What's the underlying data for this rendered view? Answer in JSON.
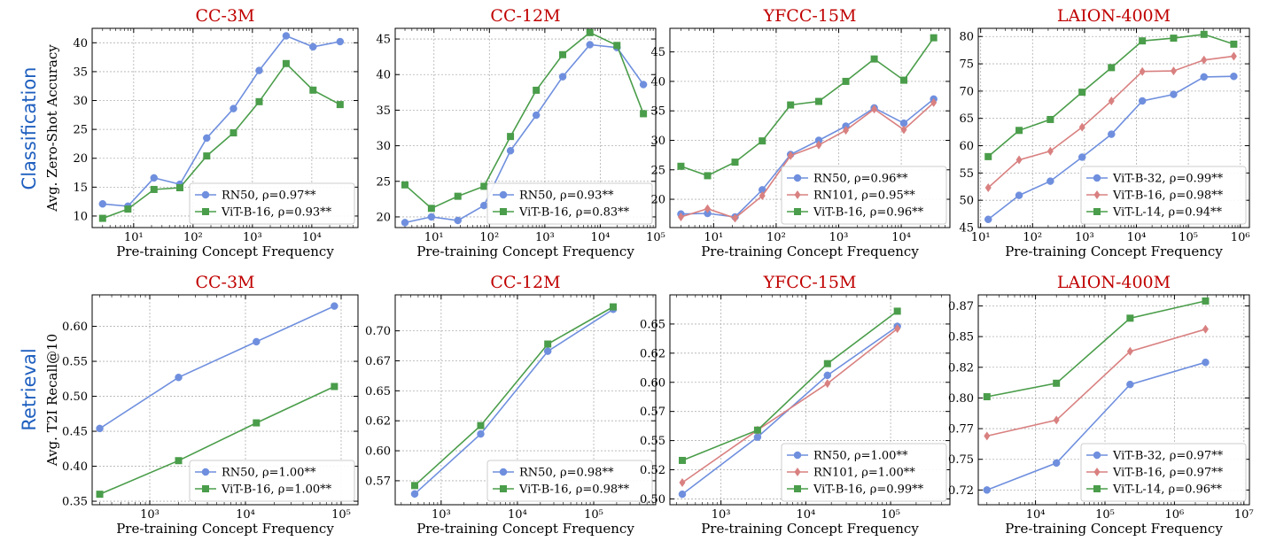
{
  "row_labels": [
    "Classification",
    "Retrieval"
  ],
  "colors": {
    "title": "#c00000",
    "row_label": "#1f5fbf",
    "rn50": "#6f8fde",
    "vitb16_green": "#4a9d4a",
    "rn101": "#d98080",
    "vitb32": "#6f8fde",
    "vitb16_red": "#d98080",
    "vitl14": "#4a9d4a"
  },
  "chart_data": [
    {
      "type": "line",
      "title": "CC-3M",
      "xlabel": "Pre-training Concept Frequency",
      "ylabel": "Avg. Zero-Shot Accuracy",
      "xscale": "log",
      "xlim": [
        2,
        60000
      ],
      "ylim": [
        8,
        42.5
      ],
      "xticks": [
        {
          "v": 10,
          "l": "10¹"
        },
        {
          "v": 100,
          "l": "10²"
        },
        {
          "v": 1000,
          "l": "10³"
        },
        {
          "v": 10000,
          "l": "10⁴"
        }
      ],
      "yticks": [
        {
          "v": 10,
          "l": "10"
        },
        {
          "v": 15,
          "l": "15"
        },
        {
          "v": 20,
          "l": "20"
        },
        {
          "v": 25,
          "l": "25"
        },
        {
          "v": 30,
          "l": "30"
        },
        {
          "v": 35,
          "l": "35"
        },
        {
          "v": 40,
          "l": "40"
        }
      ],
      "legend": "lower-right",
      "series": [
        {
          "name": "RN50, ρ=0.97**",
          "color_key": "rn50",
          "marker": "circle",
          "x": [
            3,
            8,
            22,
            60,
            170,
            480,
            1300,
            3700,
            10500,
            30000
          ],
          "y": [
            12.1,
            11.7,
            16.6,
            15.5,
            23.5,
            28.6,
            35.2,
            41.2,
            39.3,
            40.2
          ]
        },
        {
          "name": "ViT-B-16, ρ=0.93**",
          "color_key": "vitb16_green",
          "marker": "square",
          "x": [
            3,
            8,
            22,
            60,
            170,
            480,
            1300,
            3700,
            10500,
            30000
          ],
          "y": [
            9.6,
            11.2,
            14.6,
            14.9,
            20.4,
            24.4,
            29.8,
            36.4,
            31.8,
            29.3
          ]
        }
      ]
    },
    {
      "type": "line",
      "title": "CC-12M",
      "xlabel": "Pre-training Concept Frequency",
      "ylabel": "",
      "xscale": "log",
      "xlim": [
        2,
        100000
      ],
      "ylim": [
        18.5,
        46.5
      ],
      "xticks": [
        {
          "v": 10,
          "l": "10¹"
        },
        {
          "v": 100,
          "l": "10²"
        },
        {
          "v": 1000,
          "l": "10³"
        },
        {
          "v": 10000,
          "l": "10⁴"
        },
        {
          "v": 100000,
          "l": "10⁵"
        }
      ],
      "yticks": [
        {
          "v": 20,
          "l": "20"
        },
        {
          "v": 25,
          "l": "25"
        },
        {
          "v": 30,
          "l": "30"
        },
        {
          "v": 35,
          "l": "35"
        },
        {
          "v": 40,
          "l": "40"
        },
        {
          "v": 45,
          "l": "45"
        }
      ],
      "legend": "lower-right",
      "series": [
        {
          "name": "RN50, ρ=0.93**",
          "color_key": "rn50",
          "marker": "circle",
          "x": [
            3,
            9,
            27,
            80,
            240,
            700,
            2100,
            6500,
            20000,
            60000
          ],
          "y": [
            19.2,
            20.0,
            19.5,
            21.6,
            29.3,
            34.3,
            39.7,
            44.2,
            43.8,
            38.6
          ]
        },
        {
          "name": "ViT-B-16, ρ=0.83**",
          "color_key": "vitb16_green",
          "marker": "square",
          "x": [
            3,
            9,
            27,
            80,
            240,
            700,
            2100,
            6500,
            20000,
            60000
          ],
          "y": [
            24.5,
            21.2,
            22.9,
            24.3,
            31.3,
            37.8,
            42.8,
            45.9,
            44.1,
            34.5
          ]
        }
      ]
    },
    {
      "type": "line",
      "title": "YFCC-15M",
      "xlabel": "Pre-training Concept Frequency",
      "ylabel": "",
      "xscale": "log",
      "xlim": [
        2,
        60000
      ],
      "ylim": [
        15.2,
        49
      ],
      "xticks": [
        {
          "v": 10,
          "l": "10¹"
        },
        {
          "v": 100,
          "l": "10²"
        },
        {
          "v": 1000,
          "l": "10³"
        },
        {
          "v": 10000,
          "l": "10⁴"
        }
      ],
      "yticks": [
        {
          "v": 20,
          "l": "20"
        },
        {
          "v": 25,
          "l": "25"
        },
        {
          "v": 30,
          "l": "30"
        },
        {
          "v": 35,
          "l": "35"
        },
        {
          "v": 40,
          "l": "40"
        },
        {
          "v": 45,
          "l": "45"
        }
      ],
      "legend": "lower-right",
      "series": [
        {
          "name": "RN50, ρ=0.96**",
          "color_key": "rn50",
          "marker": "circle",
          "x": [
            3,
            8,
            22,
            60,
            170,
            480,
            1300,
            3700,
            11000,
            33000
          ],
          "y": [
            17.5,
            17.6,
            17.0,
            21.6,
            27.6,
            30.0,
            32.4,
            35.5,
            32.9,
            37.0
          ]
        },
        {
          "name": "RN101, ρ=0.95**",
          "color_key": "rn101",
          "marker": "diamond",
          "x": [
            3,
            8,
            22,
            60,
            170,
            480,
            1300,
            3700,
            11000,
            33000
          ],
          "y": [
            17.0,
            18.4,
            16.8,
            20.6,
            27.4,
            29.2,
            31.7,
            35.3,
            31.8,
            36.4
          ]
        },
        {
          "name": "ViT-B-16, ρ=0.96**",
          "color_key": "vitb16_green",
          "marker": "square",
          "x": [
            3,
            8,
            22,
            60,
            170,
            480,
            1300,
            3700,
            11000,
            33000
          ],
          "y": [
            25.6,
            24.0,
            26.3,
            29.9,
            36.0,
            36.6,
            40.0,
            43.8,
            40.2,
            47.4
          ]
        }
      ]
    },
    {
      "type": "line",
      "title": "LAION-400M",
      "xlabel": "Pre-training Concept Frequency",
      "ylabel": "",
      "xscale": "log",
      "xlim": [
        9,
        1500000
      ],
      "ylim": [
        45,
        81.5
      ],
      "xticks": [
        {
          "v": 10,
          "l": "10¹"
        },
        {
          "v": 100,
          "l": "10²"
        },
        {
          "v": 1000,
          "l": "10³"
        },
        {
          "v": 10000,
          "l": "10⁴"
        },
        {
          "v": 100000,
          "l": "10⁵"
        },
        {
          "v": 1000000,
          "l": "10⁶"
        }
      ],
      "yticks": [
        {
          "v": 45,
          "l": "45"
        },
        {
          "v": 50,
          "l": "50"
        },
        {
          "v": 55,
          "l": "55"
        },
        {
          "v": 60,
          "l": "60"
        },
        {
          "v": 65,
          "l": "65"
        },
        {
          "v": 70,
          "l": "70"
        },
        {
          "v": 75,
          "l": "75"
        },
        {
          "v": 80,
          "l": "80"
        }
      ],
      "legend": "lower-right",
      "series": [
        {
          "name": "ViT-B-32, ρ=0.99**",
          "color_key": "vitb32",
          "marker": "circle",
          "x": [
            14,
            55,
            220,
            900,
            3300,
            13000,
            52000,
            200000,
            750000
          ],
          "y": [
            46.5,
            50.9,
            53.5,
            57.9,
            62.1,
            68.2,
            69.4,
            72.6,
            72.7
          ]
        },
        {
          "name": "ViT-B-16, ρ=0.98**",
          "color_key": "vitb16_red",
          "marker": "diamond",
          "x": [
            14,
            55,
            220,
            900,
            3300,
            13000,
            52000,
            200000,
            750000
          ],
          "y": [
            52.3,
            57.4,
            59.0,
            63.4,
            68.2,
            73.6,
            73.7,
            75.7,
            76.4
          ]
        },
        {
          "name": "ViT-L-14, ρ=0.94**",
          "color_key": "vitl14",
          "marker": "square",
          "x": [
            14,
            55,
            220,
            900,
            3300,
            13000,
            52000,
            200000,
            750000
          ],
          "y": [
            58.0,
            62.8,
            64.8,
            69.8,
            74.3,
            79.2,
            79.7,
            80.4,
            78.6
          ]
        }
      ]
    },
    {
      "type": "line",
      "title": "CC-3M",
      "xlabel": "Pre-training Concept Frequency",
      "ylabel": "Avg. T2I Recall@10",
      "xscale": "log",
      "xlim": [
        250,
        150000
      ],
      "ylim": [
        0.345,
        0.645
      ],
      "xticks": [
        {
          "v": 1000,
          "l": "10³"
        },
        {
          "v": 10000,
          "l": "10⁴"
        },
        {
          "v": 100000,
          "l": "10⁵"
        }
      ],
      "yticks": [
        {
          "v": 0.35,
          "l": "0.35"
        },
        {
          "v": 0.4,
          "l": "0.40"
        },
        {
          "v": 0.45,
          "l": "0.45"
        },
        {
          "v": 0.5,
          "l": "0.50"
        },
        {
          "v": 0.55,
          "l": "0.55"
        },
        {
          "v": 0.6,
          "l": "0.60"
        }
      ],
      "legend": "lower-right",
      "series": [
        {
          "name": "RN50, ρ=1.00**",
          "color_key": "rn50",
          "marker": "circle",
          "x": [
            300,
            2000,
            13000,
            85000
          ],
          "y": [
            0.454,
            0.527,
            0.578,
            0.629
          ]
        },
        {
          "name": "ViT-B-16, ρ=1.00**",
          "color_key": "vitb16_green",
          "marker": "square",
          "x": [
            300,
            2000,
            13000,
            85000
          ],
          "y": [
            0.36,
            0.408,
            0.462,
            0.514
          ]
        }
      ]
    },
    {
      "type": "line",
      "title": "CC-12M",
      "xlabel": "Pre-training Concept Frequency",
      "ylabel": "",
      "xscale": "log",
      "xlim": [
        250,
        650000
      ],
      "ylim": [
        0.555,
        0.73
      ],
      "xticks": [
        {
          "v": 1000,
          "l": "10³"
        },
        {
          "v": 10000,
          "l": "10⁴"
        },
        {
          "v": 100000,
          "l": "10⁵"
        }
      ],
      "yticks": [
        {
          "v": 0.575,
          "l": "0.57"
        },
        {
          "v": 0.6,
          "l": "0.60"
        },
        {
          "v": 0.625,
          "l": "0.62"
        },
        {
          "v": 0.65,
          "l": "0.65"
        },
        {
          "v": 0.675,
          "l": "0.67"
        },
        {
          "v": 0.7,
          "l": "0.70"
        }
      ],
      "legend": "lower-right",
      "series": [
        {
          "name": "RN50, ρ=0.98**",
          "color_key": "rn50",
          "marker": "circle",
          "x": [
            450,
            3300,
            25000,
            180000
          ],
          "y": [
            0.564,
            0.614,
            0.683,
            0.718
          ]
        },
        {
          "name": "ViT-B-16, ρ=0.98**",
          "color_key": "vitb16_green",
          "marker": "square",
          "x": [
            450,
            3300,
            25000,
            180000
          ],
          "y": [
            0.571,
            0.621,
            0.689,
            0.72
          ]
        }
      ]
    },
    {
      "type": "line",
      "title": "YFCC-15M",
      "xlabel": "Pre-training Concept Frequency",
      "ylabel": "",
      "xscale": "log",
      "xlim": [
        250,
        500000
      ],
      "ylim": [
        0.495,
        0.675
      ],
      "xticks": [
        {
          "v": 1000,
          "l": "10³"
        },
        {
          "v": 10000,
          "l": "10⁴"
        },
        {
          "v": 100000,
          "l": "10⁵"
        }
      ],
      "yticks": [
        {
          "v": 0.5,
          "l": "0.50"
        },
        {
          "v": 0.525,
          "l": "0.52"
        },
        {
          "v": 0.55,
          "l": "0.55"
        },
        {
          "v": 0.575,
          "l": "0.57"
        },
        {
          "v": 0.6,
          "l": "0.60"
        },
        {
          "v": 0.625,
          "l": "0.62"
        },
        {
          "v": 0.65,
          "l": "0.65"
        }
      ],
      "legend": "lower-right",
      "series": [
        {
          "name": "RN50, ρ=1.00**",
          "color_key": "rn50",
          "marker": "circle",
          "x": [
            350,
            2700,
            18000,
            120000
          ],
          "y": [
            0.504,
            0.553,
            0.606,
            0.648
          ]
        },
        {
          "name": "RN101, ρ=1.00**",
          "color_key": "rn101",
          "marker": "diamond",
          "x": [
            350,
            2700,
            18000,
            120000
          ],
          "y": [
            0.514,
            0.559,
            0.599,
            0.646
          ]
        },
        {
          "name": "ViT-B-16, ρ=0.99**",
          "color_key": "vitb16_green",
          "marker": "square",
          "x": [
            350,
            2700,
            18000,
            120000
          ],
          "y": [
            0.533,
            0.559,
            0.616,
            0.661
          ]
        }
      ]
    },
    {
      "type": "line",
      "title": "LAION-400M",
      "xlabel": "Pre-training Concept Frequency",
      "ylabel": "",
      "xscale": "log",
      "xlim": [
        1500,
        12000000
      ],
      "ylim": [
        0.713,
        0.884
      ],
      "xticks": [
        {
          "v": 10000,
          "l": "10⁴"
        },
        {
          "v": 100000,
          "l": "10⁵"
        },
        {
          "v": 1000000,
          "l": "10⁶"
        },
        {
          "v": 10000000,
          "l": "10⁷"
        }
      ],
      "yticks": [
        {
          "v": 0.725,
          "l": "0.72"
        },
        {
          "v": 0.75,
          "l": "0.75"
        },
        {
          "v": 0.775,
          "l": "0.77"
        },
        {
          "v": 0.8,
          "l": "0.80"
        },
        {
          "v": 0.825,
          "l": "0.82"
        },
        {
          "v": 0.85,
          "l": "0.85"
        },
        {
          "v": 0.875,
          "l": "0.87"
        }
      ],
      "legend": "lower-right",
      "series": [
        {
          "name": "ViT-B-32, ρ=0.97**",
          "color_key": "vitb32",
          "marker": "circle",
          "x": [
            2000,
            20000,
            230000,
            2800000
          ],
          "y": [
            0.725,
            0.747,
            0.811,
            0.829
          ]
        },
        {
          "name": "ViT-B-16, ρ=0.97**",
          "color_key": "vitb16_red",
          "marker": "diamond",
          "x": [
            2000,
            20000,
            230000,
            2800000
          ],
          "y": [
            0.769,
            0.782,
            0.838,
            0.856
          ]
        },
        {
          "name": "ViT-L-14, ρ=0.96**",
          "color_key": "vitl14",
          "marker": "square",
          "x": [
            2000,
            20000,
            230000,
            2800000
          ],
          "y": [
            0.801,
            0.812,
            0.865,
            0.879
          ]
        }
      ]
    }
  ]
}
